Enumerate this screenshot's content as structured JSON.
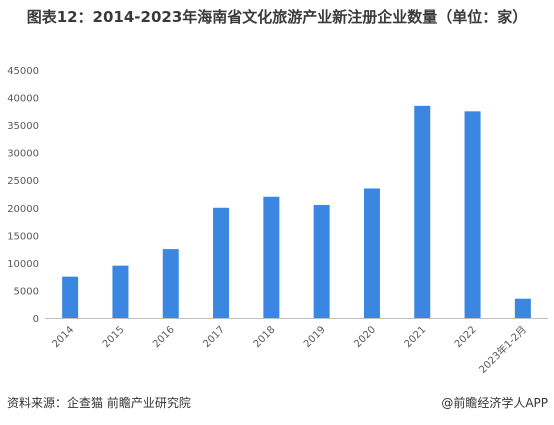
{
  "title": "图表12：2014-2023年海南省文化旅游产业新注册企业数量（单位：家）",
  "footer": {
    "source": "资料来源：企查猫 前瞻产业研究院",
    "brand": "@前瞻经济学人APP"
  },
  "colors": {
    "bar": "#3a86e0",
    "axis": "#bfbfbf",
    "text": "#595959"
  },
  "chart_data": {
    "type": "bar",
    "categories": [
      "2014",
      "2015",
      "2016",
      "2017",
      "2018",
      "2019",
      "2020",
      "2021",
      "2022",
      "2023年1-2月"
    ],
    "values": [
      7500,
      9500,
      12500,
      20000,
      22000,
      20500,
      23500,
      38500,
      37500,
      3500
    ],
    "yticks": [
      0,
      5000,
      10000,
      15000,
      20000,
      25000,
      30000,
      35000,
      40000,
      45000
    ],
    "ylim": [
      0,
      45000
    ],
    "xlabel": "",
    "ylabel": "",
    "grid": false,
    "legend": "none"
  }
}
